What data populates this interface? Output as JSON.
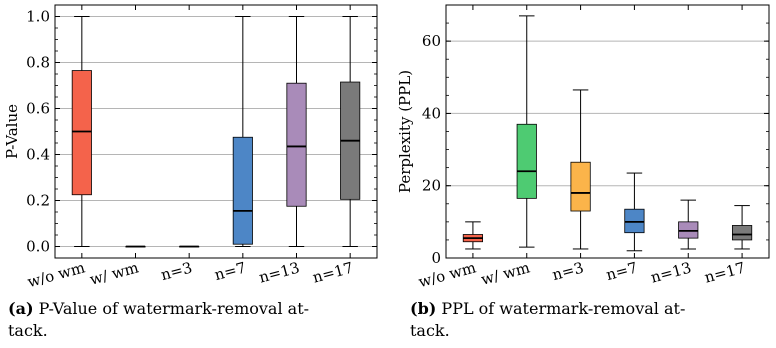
{
  "chart_data": [
    {
      "type": "box",
      "ylabel": "P-Value",
      "ylim": [
        -0.05,
        1.05
      ],
      "yticks": [
        "0.0",
        "0.2",
        "0.4",
        "0.6",
        "0.8",
        "1.0"
      ],
      "grid": "horizontal",
      "categories": [
        "w/o wm",
        "w/ wm",
        "n=3",
        "n=7",
        "n=13",
        "n=17"
      ],
      "boxes": [
        {
          "min": 0.0,
          "q1": 0.225,
          "median": 0.5,
          "q3": 0.765,
          "max": 1.0,
          "color": "#f4634b"
        },
        {
          "min": 0.0,
          "q1": 0.0,
          "median": 0.0,
          "q3": 0.0,
          "max": 0.0,
          "color": "#3a3a3a"
        },
        {
          "min": 0.0,
          "q1": 0.0,
          "median": 0.0,
          "q3": 0.0,
          "max": 0.0,
          "color": "#3a3a3a"
        },
        {
          "min": 0.0,
          "q1": 0.01,
          "median": 0.155,
          "q3": 0.475,
          "max": 1.0,
          "color": "#4d86c6"
        },
        {
          "min": 0.0,
          "q1": 0.175,
          "median": 0.435,
          "q3": 0.71,
          "max": 1.0,
          "color": "#a98bb9"
        },
        {
          "min": 0.0,
          "q1": 0.205,
          "median": 0.46,
          "q3": 0.715,
          "max": 1.0,
          "color": "#7a7a7a"
        }
      ],
      "caption_label": "(a)",
      "caption_text": "P-Value of watermark-removal at-",
      "caption_text2": "tack."
    },
    {
      "type": "box",
      "ylabel": "Perplexity (PPL)",
      "ylim": [
        0,
        70
      ],
      "yticks": [
        "0",
        "20",
        "40",
        "60"
      ],
      "grid": "horizontal",
      "categories": [
        "w/o wm",
        "w/ wm",
        "n=3",
        "n=7",
        "n=13",
        "n=17"
      ],
      "boxes": [
        {
          "min": 2.5,
          "q1": 4.5,
          "median": 5.5,
          "q3": 6.5,
          "max": 10.0,
          "color": "#f4634b"
        },
        {
          "min": 3.0,
          "q1": 16.5,
          "median": 24.0,
          "q3": 37.0,
          "max": 67.0,
          "color": "#4ecb72"
        },
        {
          "min": 2.5,
          "q1": 13.0,
          "median": 18.0,
          "q3": 26.5,
          "max": 46.5,
          "color": "#fbb44a"
        },
        {
          "min": 2.0,
          "q1": 7.0,
          "median": 10.0,
          "q3": 13.5,
          "max": 23.5,
          "color": "#4d86c6"
        },
        {
          "min": 2.5,
          "q1": 5.5,
          "median": 7.5,
          "q3": 10.0,
          "max": 16.0,
          "color": "#a98bb9"
        },
        {
          "min": 2.5,
          "q1": 5.0,
          "median": 6.5,
          "q3": 9.0,
          "max": 14.5,
          "color": "#7a7a7a"
        }
      ],
      "caption_label": "(b)",
      "caption_text": "PPL of watermark-removal at-",
      "caption_text2": "tack."
    }
  ]
}
